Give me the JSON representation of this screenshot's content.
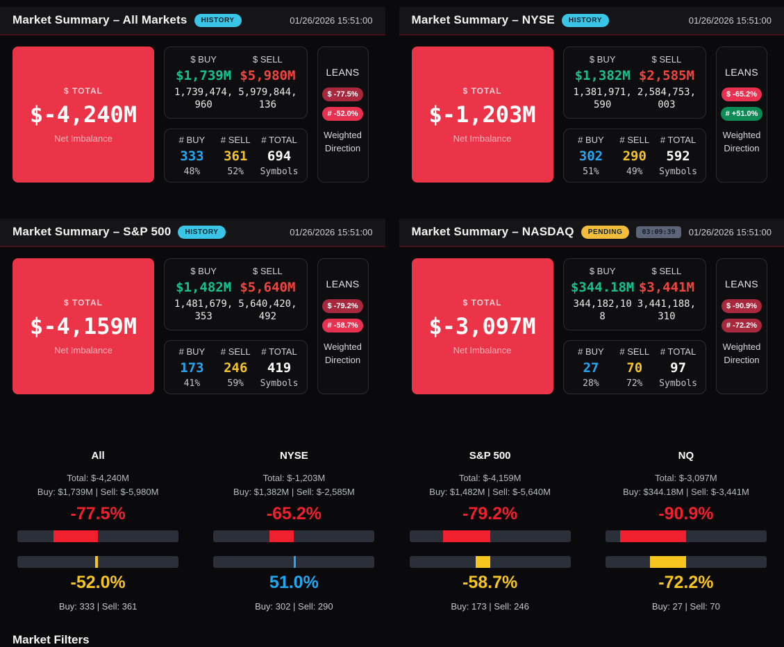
{
  "panels": [
    {
      "title": "Market Summary – All Markets",
      "status": {
        "label": "HISTORY",
        "bg": "#38c5e6"
      },
      "timestamp": "01/26/2026 15:51:00",
      "total": {
        "label": "$ TOTAL",
        "value": "$-4,240M",
        "sub": "Net Imbalance"
      },
      "dollar": {
        "buy_label": "$ BUY",
        "buy_value": "$1,739M",
        "buy_raw": "1,739,474,960",
        "sell_label": "$ SELL",
        "sell_value": "$5,980M",
        "sell_raw": "5,979,844,136"
      },
      "counts": {
        "buy_label": "# BUY",
        "buy": "333",
        "buy_pct": "48%",
        "sell_label": "# SELL",
        "sell": "361",
        "sell_pct": "52%",
        "total_label": "# TOTAL",
        "total": "694",
        "total_sub": "Symbols"
      },
      "leans": {
        "title": "LEANS",
        "dollar": {
          "label": "$ -77.5%",
          "bg": "#a8283e"
        },
        "count": {
          "label": "# -52.0%",
          "bg": "#e83151"
        },
        "footer": "Weighted Direction"
      }
    },
    {
      "title": "Market Summary – NYSE",
      "status": {
        "label": "HISTORY",
        "bg": "#38c5e6"
      },
      "timestamp": "01/26/2026 15:51:00",
      "total": {
        "label": "$ TOTAL",
        "value": "$-1,203M",
        "sub": "Net Imbalance"
      },
      "dollar": {
        "buy_label": "$ BUY",
        "buy_value": "$1,382M",
        "buy_raw": "1,381,971,590",
        "sell_label": "$ SELL",
        "sell_value": "$2,585M",
        "sell_raw": "2,584,753,003"
      },
      "counts": {
        "buy_label": "# BUY",
        "buy": "302",
        "buy_pct": "51%",
        "sell_label": "# SELL",
        "sell": "290",
        "sell_pct": "49%",
        "total_label": "# TOTAL",
        "total": "592",
        "total_sub": "Symbols"
      },
      "leans": {
        "title": "LEANS",
        "dollar": {
          "label": "$ -65.2%",
          "bg": "#e83151"
        },
        "count": {
          "label": "# +51.0%",
          "bg": "#0c8b55"
        },
        "footer": "Weighted Direction"
      }
    },
    {
      "title": "Market Summary – S&P 500",
      "status": {
        "label": "HISTORY",
        "bg": "#38c5e6"
      },
      "timestamp": "01/26/2026 15:51:00",
      "total": {
        "label": "$ TOTAL",
        "value": "$-4,159M",
        "sub": "Net Imbalance"
      },
      "dollar": {
        "buy_label": "$ BUY",
        "buy_value": "$1,482M",
        "buy_raw": "1,481,679,353",
        "sell_label": "$ SELL",
        "sell_value": "$5,640M",
        "sell_raw": "5,640,420,492"
      },
      "counts": {
        "buy_label": "# BUY",
        "buy": "173",
        "buy_pct": "41%",
        "sell_label": "# SELL",
        "sell": "246",
        "sell_pct": "59%",
        "total_label": "# TOTAL",
        "total": "419",
        "total_sub": "Symbols"
      },
      "leans": {
        "title": "LEANS",
        "dollar": {
          "label": "$ -79.2%",
          "bg": "#a8283e"
        },
        "count": {
          "label": "# -58.7%",
          "bg": "#e83151"
        },
        "footer": "Weighted Direction"
      }
    },
    {
      "title": "Market Summary – NASDAQ",
      "status": {
        "label": "PENDING",
        "bg": "#f2bd3a"
      },
      "timer": "03:09:39",
      "timer_bg": "#5c6577",
      "timestamp": "01/26/2026 15:51:00",
      "total": {
        "label": "$ TOTAL",
        "value": "$-3,097M",
        "sub": "Net Imbalance"
      },
      "dollar": {
        "buy_label": "$ BUY",
        "buy_value": "$344.18M",
        "buy_raw": "344,182,108",
        "sell_label": "$ SELL",
        "sell_value": "$3,441M",
        "sell_raw": "3,441,188,310"
      },
      "counts": {
        "buy_label": "# BUY",
        "buy": "27",
        "buy_pct": "28%",
        "sell_label": "# SELL",
        "sell": "70",
        "sell_pct": "72%",
        "total_label": "# TOTAL",
        "total": "97",
        "total_sub": "Symbols"
      },
      "leans": {
        "title": "LEANS",
        "dollar": {
          "label": "$ -90.9%",
          "bg": "#a8283e"
        },
        "count": {
          "label": "# -72.2%",
          "bg": "#a8283e"
        },
        "footer": "Weighted Direction"
      }
    }
  ],
  "comparison": {
    "columns": [
      {
        "name": "All",
        "total": "Total: $-4,240M",
        "buy_sell": "Buy: $1,739M | Sell: $-5,980M",
        "dollar_pct": {
          "label": "-77.5%",
          "value": -77.5,
          "color": "#f0202e"
        },
        "count_pct": {
          "label": "-52.0%",
          "value": -52.0,
          "color": "#f6c51f"
        },
        "counts": "Buy: 333 | Sell: 361"
      },
      {
        "name": "NYSE",
        "total": "Total: $-1,203M",
        "buy_sell": "Buy: $1,382M | Sell: $-2,585M",
        "dollar_pct": {
          "label": "-65.2%",
          "value": -65.2,
          "color": "#f0202e"
        },
        "count_pct": {
          "label": "51.0%",
          "value": 51.0,
          "color": "#1fa9f4"
        },
        "counts": "Buy: 302 | Sell: 290"
      },
      {
        "name": "S&P 500",
        "total": "Total: $-4,159M",
        "buy_sell": "Buy: $1,482M | Sell: $-5,640M",
        "dollar_pct": {
          "label": "-79.2%",
          "value": -79.2,
          "color": "#f0202e"
        },
        "count_pct": {
          "label": "-58.7%",
          "value": -58.7,
          "color": "#f6c51f"
        },
        "counts": "Buy: 173 | Sell: 246"
      },
      {
        "name": "NQ",
        "total": "Total: $-3,097M",
        "buy_sell": "Buy: $344.18M | Sell: $-3,441M",
        "dollar_pct": {
          "label": "-90.9%",
          "value": -90.9,
          "color": "#f0202e"
        },
        "count_pct": {
          "label": "-72.2%",
          "value": -72.2,
          "color": "#f6c51f"
        },
        "counts": "Buy: 27 | Sell: 70"
      }
    ]
  },
  "next_section": {
    "title": "Market Filters"
  }
}
